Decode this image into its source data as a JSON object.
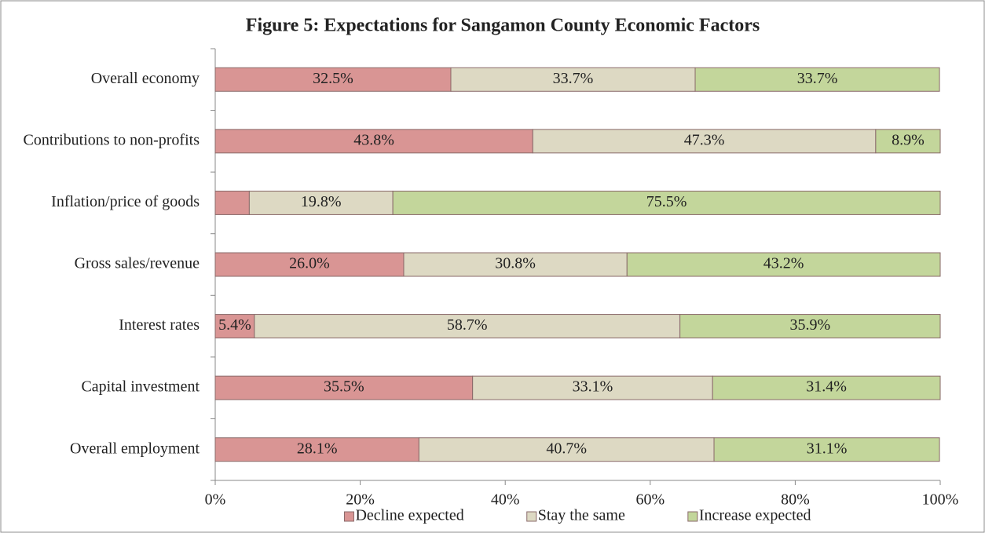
{
  "chart_data": {
    "type": "stacked-bar-horizontal",
    "title": "Figure 5: Expectations for Sangamon County Economic Factors",
    "categories": [
      "Overall economy",
      "Contributions to non-profits",
      "Inflation/price of goods",
      "Gross sales/revenue",
      "Interest rates",
      "Capital investment",
      "Overall employment"
    ],
    "series": [
      {
        "name": "Decline expected",
        "color": "#d99594",
        "values": [
          32.5,
          43.8,
          4.7,
          26.0,
          5.4,
          35.5,
          28.1
        ],
        "value_labels": [
          "32.5%",
          "43.8%",
          null,
          "26.0%",
          "5.4%",
          "35.5%",
          "28.1%"
        ]
      },
      {
        "name": "Stay the same",
        "color": "#ddd9c3",
        "values": [
          33.7,
          47.3,
          19.8,
          30.8,
          58.7,
          33.1,
          40.7
        ],
        "value_labels": [
          "33.7%",
          "47.3%",
          "19.8%",
          "30.8%",
          "58.7%",
          "33.1%",
          "40.7%"
        ]
      },
      {
        "name": "Increase expected",
        "color": "#c3d69b",
        "values": [
          33.7,
          8.9,
          75.5,
          43.2,
          35.9,
          31.4,
          31.1
        ],
        "value_labels": [
          "33.7%",
          "8.9%",
          "75.5%",
          "43.2%",
          "35.9%",
          "31.4%",
          "31.1%"
        ]
      }
    ],
    "xlim": [
      0,
      100
    ],
    "xticks": [
      {
        "value": 0,
        "label": "0%"
      },
      {
        "value": 20,
        "label": "20%"
      },
      {
        "value": 40,
        "label": "40%"
      },
      {
        "value": 60,
        "label": "60%"
      },
      {
        "value": 80,
        "label": "80%"
      },
      {
        "value": 100,
        "label": "100%"
      }
    ],
    "legend": "bottom"
  }
}
